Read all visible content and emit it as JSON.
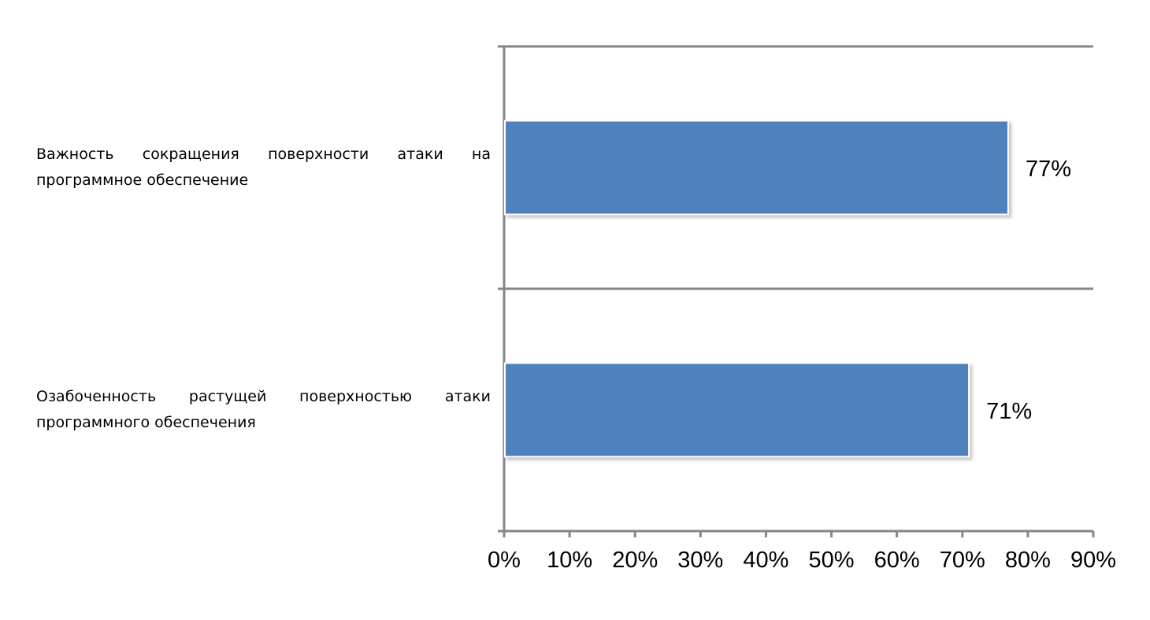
{
  "chart_data": {
    "type": "bar",
    "orientation": "horizontal",
    "categories": [
      "Важность сокращения поверхности атаки на программное обеспечение",
      "Озабоченность растущей поверхностью атаки программного обеспечения"
    ],
    "values": [
      77,
      71
    ],
    "value_labels": [
      "77%",
      "71%"
    ],
    "xlim": [
      0,
      90
    ],
    "xticks": [
      0,
      10,
      20,
      30,
      40,
      50,
      60,
      70,
      80,
      90
    ],
    "xtick_labels": [
      "0%",
      "10%",
      "20%",
      "30%",
      "40%",
      "50%",
      "60%",
      "70%",
      "80%",
      "90%"
    ],
    "title": "",
    "xlabel": "",
    "ylabel": "",
    "grid": false,
    "bar_color": "#4f81bd",
    "axis_color": "#868686"
  }
}
